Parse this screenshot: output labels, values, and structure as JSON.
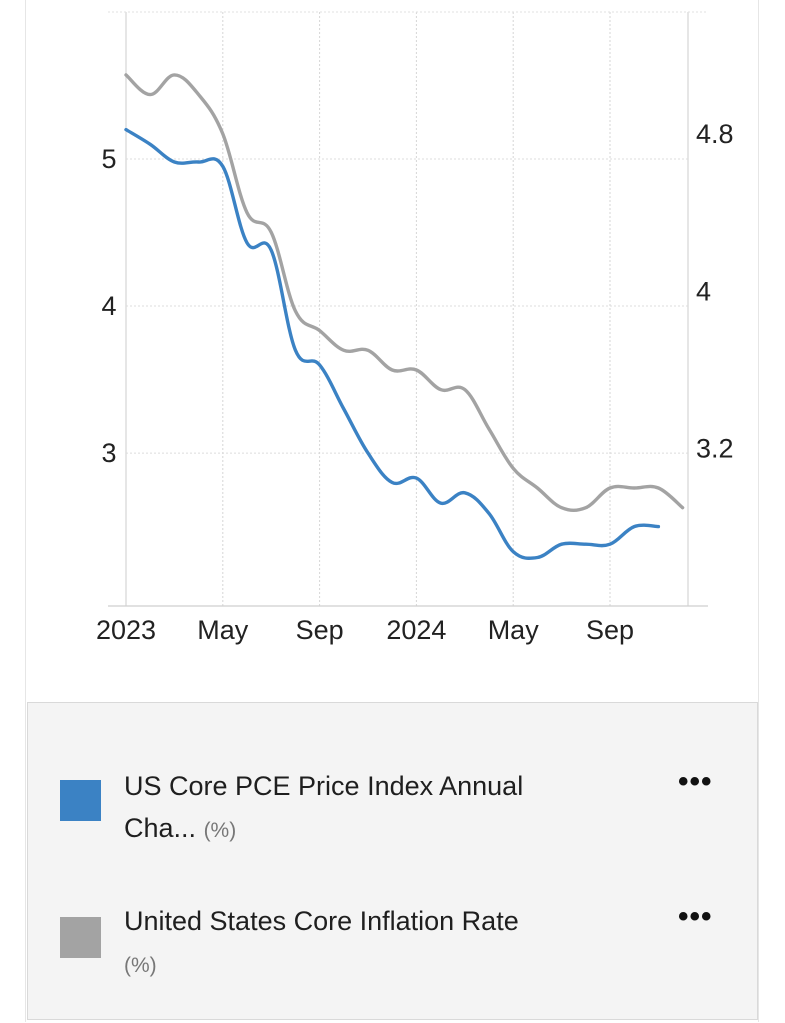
{
  "chart_data": {
    "type": "line",
    "x_tick_labels": [
      "2023",
      "May",
      "Sep",
      "2024",
      "May",
      "Sep"
    ],
    "x_tick_months": [
      0,
      4,
      8,
      12,
      16,
      20
    ],
    "left_axis": {
      "ticks": [
        3,
        4,
        5
      ],
      "range": [
        1.96,
        6.0
      ]
    },
    "right_axis": {
      "ticks": [
        3.2,
        4,
        4.8
      ],
      "range": [
        2.4,
        5.42
      ]
    },
    "series": [
      {
        "name": "US Core PCE Price Index Annual Cha...",
        "unit": "(%)",
        "axis": "left",
        "color": "#3b82c4",
        "months": [
          0,
          1,
          2,
          3,
          4,
          5,
          6,
          7,
          8,
          9,
          10,
          11,
          12,
          13,
          14,
          15,
          16,
          17,
          18,
          19,
          20,
          21,
          22
        ],
        "values": [
          5.2,
          5.1,
          4.98,
          4.98,
          4.95,
          4.43,
          4.38,
          3.7,
          3.6,
          3.3,
          3.0,
          2.8,
          2.83,
          2.66,
          2.73,
          2.59,
          2.33,
          2.29,
          2.38,
          2.38,
          2.38,
          2.5,
          2.5
        ]
      },
      {
        "name": "United States Core Inflation Rate",
        "unit": "(%)",
        "axis": "right",
        "color": "#a3a3a3",
        "months": [
          0,
          1,
          2,
          3,
          4,
          5,
          6,
          7,
          8,
          9,
          10,
          11,
          12,
          13,
          14,
          15,
          16,
          17,
          18,
          19,
          20,
          21,
          22,
          23
        ],
        "values": [
          5.1,
          5.0,
          5.1,
          5.0,
          4.8,
          4.4,
          4.3,
          3.9,
          3.8,
          3.7,
          3.7,
          3.6,
          3.6,
          3.5,
          3.5,
          3.3,
          3.1,
          3.0,
          2.9,
          2.9,
          3.0,
          3.0,
          3.0,
          2.9
        ]
      }
    ]
  },
  "legend": {
    "items": [
      {
        "label": "US Core PCE Price Index Annual Cha...",
        "unit": "(%)",
        "color": "#3b82c4",
        "menu": "•••"
      },
      {
        "label": "United States Core Inflation Rate",
        "unit": "(%)",
        "color": "#a3a3a3",
        "menu": "•••"
      }
    ]
  }
}
